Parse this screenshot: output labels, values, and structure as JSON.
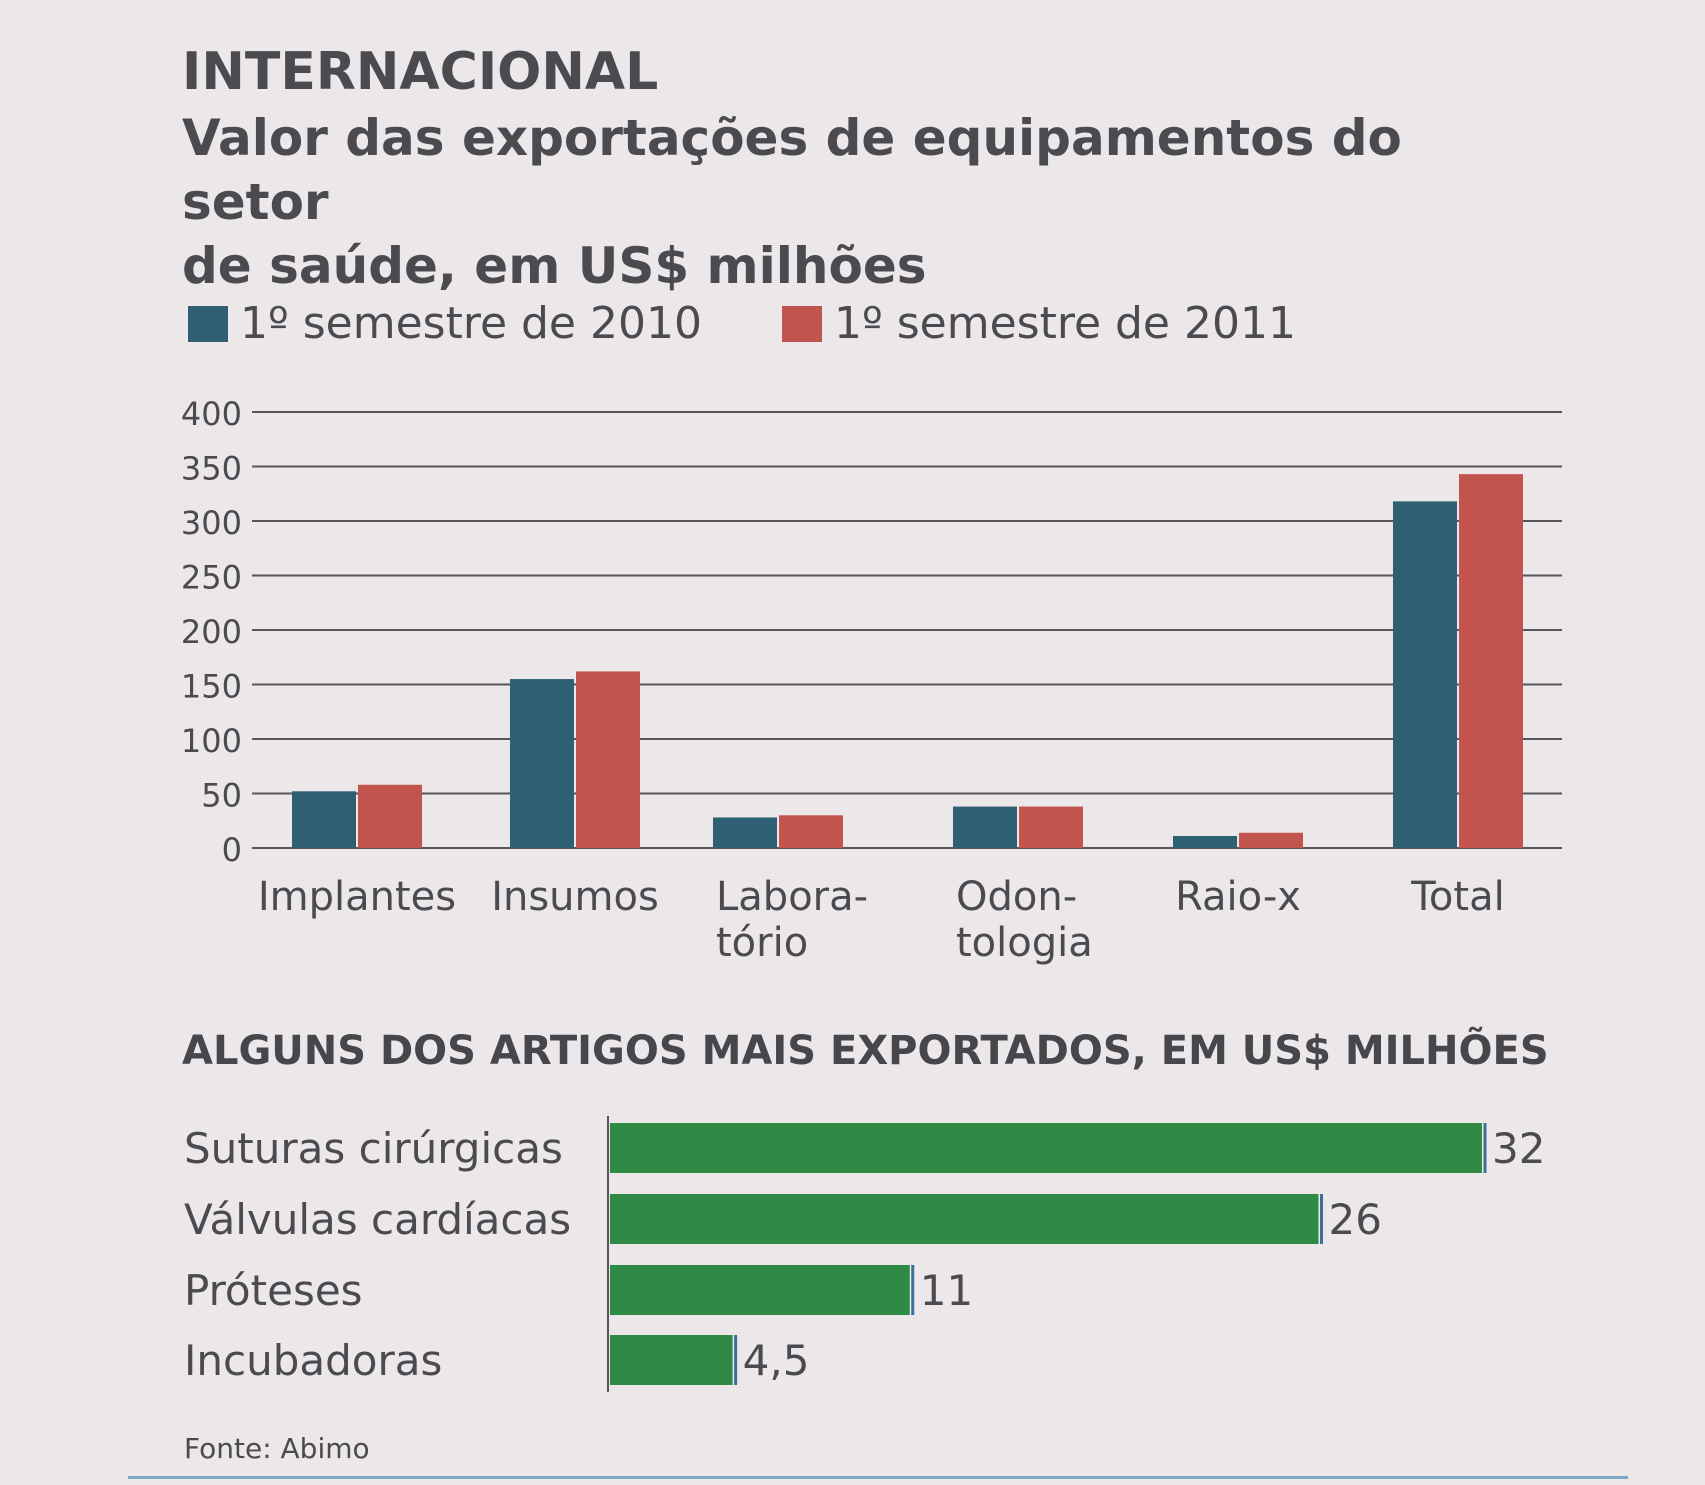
{
  "header": {
    "section": "INTERNACIONAL",
    "title": "Valor das exportações de equipamentos do setor\nde saúde, em US$ milhões"
  },
  "colors": {
    "series_2010": "#2e5f72",
    "series_2011": "#c2544e",
    "hbar": "#2f8a46",
    "gridline": "#55555a",
    "text": "#4a4a50"
  },
  "chart_data": [
    {
      "type": "bar",
      "title": "Valor das exportações de equipamentos do setor de saúde, em US$ milhões",
      "categories": [
        "Implantes",
        "Insumos",
        "Labora-\ntório",
        "Odon-\ntologia",
        "Raio-x",
        "Total"
      ],
      "series": [
        {
          "name": "1º semestre de 2010",
          "values": [
            52,
            155,
            28,
            38,
            11,
            318
          ]
        },
        {
          "name": "1º semestre de 2011",
          "values": [
            58,
            162,
            30,
            38,
            14,
            343
          ]
        }
      ],
      "ylim": [
        0,
        400
      ],
      "yticks": [
        0,
        50,
        100,
        150,
        200,
        250,
        300,
        350,
        400
      ],
      "grid": true,
      "legend": "top-left"
    },
    {
      "type": "bar",
      "orientation": "horizontal",
      "title": "ALGUNS DOS ARTIGOS MAIS EXPORTADOS, EM US$ MILHÕES",
      "categories": [
        "Suturas cirúrgicas",
        "Válvulas cardíacas",
        "Próteses",
        "Incubadoras"
      ],
      "values": [
        32,
        26,
        11,
        4.5
      ],
      "value_labels": [
        "32",
        "26",
        "11",
        "4,5"
      ]
    }
  ],
  "source": "Fonte: Abimo"
}
